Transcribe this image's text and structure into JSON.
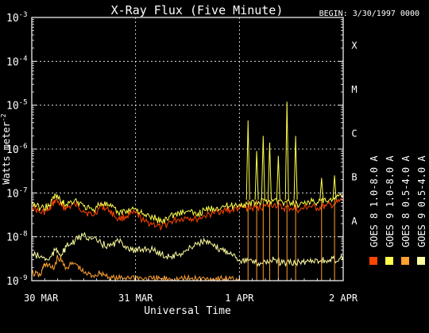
{
  "chart_data": {
    "type": "line",
    "title": "X-Ray Flux (Five Minute)",
    "begin_label": "BEGIN: 3/30/1997 0000",
    "ylabel": "Watts meter",
    "ylabel_exp": "-2",
    "xlabel": "Universal Time",
    "y_scale": "log",
    "ylim": [
      1e-09,
      0.001
    ],
    "y_ticks": [
      {
        "value": 0.001,
        "base": "10",
        "exp": "-3"
      },
      {
        "value": 0.0001,
        "base": "10",
        "exp": "-4"
      },
      {
        "value": 1e-05,
        "base": "10",
        "exp": "-5"
      },
      {
        "value": 1e-06,
        "base": "10",
        "exp": "-6"
      },
      {
        "value": 1e-07,
        "base": "10",
        "exp": "-7"
      },
      {
        "value": 1e-08,
        "base": "10",
        "exp": "-8"
      },
      {
        "value": 1e-09,
        "base": "10",
        "exp": "-9"
      }
    ],
    "xlim": [
      "1997-03-30 00:00",
      "1997-04-02 00:00"
    ],
    "x_ticks": [
      {
        "value": "1997-03-30 00:00",
        "label": "30 MAR"
      },
      {
        "value": "1997-03-31 00:00",
        "label": "31 MAR"
      },
      {
        "value": "1997-04-01 00:00",
        "label": "1 APR"
      },
      {
        "value": "1997-04-02 00:00",
        "label": "2 APR"
      }
    ],
    "flare_classes": [
      {
        "label": "X",
        "value": 0.0001
      },
      {
        "label": "M",
        "value": 1e-05
      },
      {
        "label": "C",
        "value": 1e-06
      },
      {
        "label": "B",
        "value": 1e-07
      },
      {
        "label": "A",
        "value": 1e-08
      }
    ],
    "grid": true,
    "legend_position": "right",
    "series": [
      {
        "name": "GOES 8 1.0-8.0 A",
        "color": "#ff4500",
        "x": [
          "1997-03-30 00:00",
          "1997-03-30 02:00",
          "1997-03-30 04:00",
          "1997-03-30 05:30",
          "1997-03-30 07:00",
          "1997-03-30 08:00",
          "1997-03-30 10:00",
          "1997-03-30 12:00",
          "1997-03-30 14:00",
          "1997-03-30 16:00",
          "1997-03-30 18:00",
          "1997-03-30 20:00",
          "1997-03-30 22:00",
          "1997-03-31 00:00",
          "1997-03-31 02:00",
          "1997-03-31 04:00",
          "1997-03-31 06:00",
          "1997-03-31 08:00",
          "1997-03-31 10:00",
          "1997-03-31 12:00",
          "1997-03-31 14:00",
          "1997-03-31 16:00",
          "1997-03-31 18:00",
          "1997-03-31 20:00",
          "1997-03-31 22:00",
          "1997-04-01 00:00",
          "1997-04-01 02:00",
          "1997-04-01 04:00",
          "1997-04-01 06:00",
          "1997-04-01 08:00",
          "1997-04-01 10:00",
          "1997-04-01 12:00",
          "1997-04-01 14:00",
          "1997-04-01 16:00",
          "1997-04-01 18:00",
          "1997-04-01 20:00",
          "1997-04-01 22:00",
          "1997-04-02 00:00"
        ],
        "values": [
          5e-08,
          3.5e-08,
          4e-08,
          7e-08,
          5e-08,
          4.5e-08,
          5.5e-08,
          4e-08,
          3e-08,
          5e-08,
          4e-08,
          2.5e-08,
          3e-08,
          3.5e-08,
          2.2e-08,
          2e-08,
          1.6e-08,
          2.2e-08,
          2.5e-08,
          2.8e-08,
          2.5e-08,
          3e-08,
          3.5e-08,
          4e-08,
          4e-08,
          4.5e-08,
          4.5e-08,
          4.5e-08,
          5e-08,
          5.5e-08,
          4.5e-08,
          4.5e-08,
          4e-08,
          5e-08,
          4.5e-08,
          5e-08,
          5.5e-08,
          7e-08
        ]
      },
      {
        "name": "GOES 8 0.5-4.0 A",
        "color": "#ffa030",
        "x": [
          "1997-03-30 00:00",
          "1997-03-30 02:00",
          "1997-03-30 03:00",
          "1997-03-30 05:00",
          "1997-03-30 06:00",
          "1997-03-30 08:00",
          "1997-03-30 10:00",
          "1997-03-30 12:00",
          "1997-03-30 14:00",
          "1997-03-30 16:00",
          "1997-03-30 18:00",
          "1997-03-30 20:00",
          "1997-03-30 22:00",
          "1997-03-31 00:00",
          "1997-03-31 02:00",
          "1997-03-31 04:00",
          "1997-03-31 06:00",
          "1997-03-31 08:00",
          "1997-03-31 10:00",
          "1997-03-31 12:00",
          "1997-03-31 14:00",
          "1997-03-31 16:00",
          "1997-03-31 18:00",
          "1997-03-31 20:00",
          "1997-03-31 22:00",
          "1997-04-01 00:00"
        ],
        "values": [
          1.5e-09,
          1.3e-09,
          2.5e-09,
          1.8e-09,
          3.5e-09,
          2e-09,
          2.5e-09,
          1.5e-09,
          1.3e-09,
          1.5e-09,
          1.2e-09,
          1.1e-09,
          1.2e-09,
          1.2e-09,
          1.1e-09,
          1.1e-09,
          1.1e-09,
          1.1e-09,
          1.1e-09,
          1.1e-09,
          1.1e-09,
          1.1e-09,
          1.1e-09,
          1.1e-09,
          1.1e-09,
          1.1e-09
        ]
      },
      {
        "name": "GOES 9 1.0-8.0 A",
        "color": "#ffff4a",
        "x": [
          "1997-03-30 00:00",
          "1997-03-30 02:00",
          "1997-03-30 04:00",
          "1997-03-30 05:30",
          "1997-03-30 07:00",
          "1997-03-30 08:00",
          "1997-03-30 10:00",
          "1997-03-30 12:00",
          "1997-03-30 14:00",
          "1997-03-30 16:00",
          "1997-03-30 18:00",
          "1997-03-30 20:00",
          "1997-03-30 22:00",
          "1997-03-31 00:00",
          "1997-03-31 02:00",
          "1997-03-31 04:00",
          "1997-03-31 06:00",
          "1997-03-31 08:00",
          "1997-03-31 10:00",
          "1997-03-31 12:00",
          "1997-03-31 14:00",
          "1997-03-31 16:00",
          "1997-03-31 18:00",
          "1997-03-31 20:00",
          "1997-03-31 22:00",
          "1997-04-01 00:00",
          "1997-04-01 02:00",
          "1997-04-01 04:00",
          "1997-04-01 06:00",
          "1997-04-01 08:00",
          "1997-04-01 10:00",
          "1997-04-01 12:00",
          "1997-04-01 14:00",
          "1997-04-01 16:00",
          "1997-04-01 18:00",
          "1997-04-01 20:00",
          "1997-04-01 22:00",
          "1997-04-02 00:00"
        ],
        "values": [
          6e-08,
          4.5e-08,
          5e-08,
          9e-08,
          6e-08,
          5.5e-08,
          7e-08,
          5e-08,
          4e-08,
          6e-08,
          5e-08,
          3.5e-08,
          4e-08,
          4.5e-08,
          3e-08,
          2.8e-08,
          2.2e-08,
          3e-08,
          3.5e-08,
          3.8e-08,
          3.2e-08,
          4e-08,
          4.5e-08,
          5e-08,
          5e-08,
          5.5e-08,
          5.5e-08,
          6e-08,
          6.5e-08,
          7e-08,
          6e-08,
          6e-08,
          5.5e-08,
          6.5e-08,
          6e-08,
          6.5e-08,
          7e-08,
          9e-08
        ]
      },
      {
        "name": "GOES 9 0.5-4.0 A",
        "color": "#ffffa0",
        "x": [
          "1997-03-30 00:00",
          "1997-03-30 02:00",
          "1997-03-30 04:00",
          "1997-03-30 05:30",
          "1997-03-30 07:00",
          "1997-03-30 08:00",
          "1997-03-30 10:00",
          "1997-03-30 12:00",
          "1997-03-30 14:00",
          "1997-03-30 16:00",
          "1997-03-30 18:00",
          "1997-03-30 20:00",
          "1997-03-30 22:00",
          "1997-03-31 00:00",
          "1997-03-31 02:00",
          "1997-03-31 04:00",
          "1997-03-31 06:00",
          "1997-03-31 08:00",
          "1997-03-31 10:00",
          "1997-03-31 12:00",
          "1997-03-31 14:00",
          "1997-03-31 16:00",
          "1997-03-31 18:00",
          "1997-03-31 20:00",
          "1997-03-31 22:00",
          "1997-04-01 00:00",
          "1997-04-01 02:00",
          "1997-04-01 04:00",
          "1997-04-01 06:00",
          "1997-04-01 08:00",
          "1997-04-01 10:00",
          "1997-04-01 12:00",
          "1997-04-01 14:00",
          "1997-04-01 16:00",
          "1997-04-01 18:00",
          "1997-04-01 20:00",
          "1997-04-01 22:00",
          "1997-04-02 00:00"
        ],
        "values": [
          4e-09,
          3.5e-09,
          3e-09,
          5e-09,
          4e-09,
          6e-09,
          8e-09,
          1.1e-08,
          9e-09,
          7e-09,
          6e-09,
          8e-09,
          6e-09,
          4.5e-09,
          5.5e-09,
          5e-09,
          4e-09,
          3.5e-09,
          4e-09,
          5e-09,
          7e-09,
          8e-09,
          6e-09,
          5e-09,
          4.5e-09,
          3e-09,
          2.8e-09,
          2.5e-09,
          2.7e-09,
          3e-09,
          2.5e-09,
          2.5e-09,
          2.6e-09,
          2.8e-09,
          3e-09,
          2.8e-09,
          3e-09,
          3.5e-09
        ]
      }
    ],
    "flare_spikes": [
      {
        "series": "GOES 9 1.0-8.0 A",
        "x": "1997-04-01 02:00",
        "value": 4.5e-06
      },
      {
        "series": "GOES 9 1.0-8.0 A",
        "x": "1997-04-01 04:00",
        "value": 9e-07
      },
      {
        "series": "GOES 9 1.0-8.0 A",
        "x": "1997-04-01 05:30",
        "value": 2e-06
      },
      {
        "series": "GOES 9 1.0-8.0 A",
        "x": "1997-04-01 07:00",
        "value": 1.4e-06
      },
      {
        "series": "GOES 9 1.0-8.0 A",
        "x": "1997-04-01 09:00",
        "value": 7e-07
      },
      {
        "series": "GOES 9 1.0-8.0 A",
        "x": "1997-04-01 11:00",
        "value": 1.2e-05
      },
      {
        "series": "GOES 9 1.0-8.0 A",
        "x": "1997-04-01 13:00",
        "value": 2e-06
      },
      {
        "series": "GOES 9 1.0-8.0 A",
        "x": "1997-04-01 19:00",
        "value": 2.2e-07
      },
      {
        "series": "GOES 9 1.0-8.0 A",
        "x": "1997-04-01 22:00",
        "value": 2.5e-07
      }
    ]
  }
}
